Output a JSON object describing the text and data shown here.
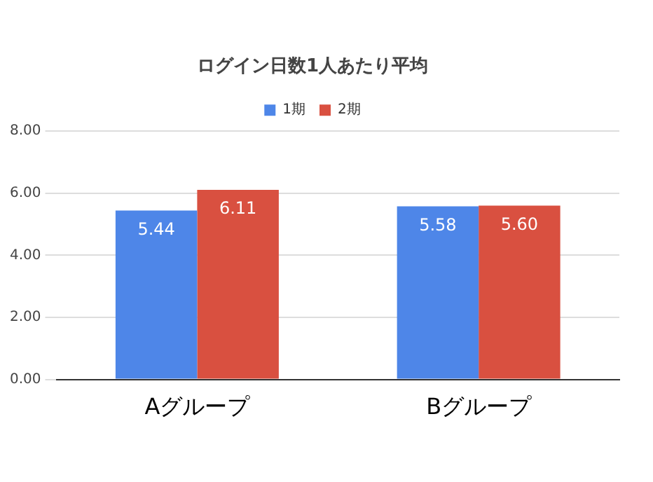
{
  "chart_data": {
    "type": "bar",
    "title": "ログイン日数1人あたり平均",
    "categories": [
      "Aグループ",
      "Bグループ"
    ],
    "series": [
      {
        "name": "1期",
        "color": "#4e86e8",
        "values": [
          5.44,
          5.58
        ],
        "value_labels": [
          "5.44",
          "5.58"
        ]
      },
      {
        "name": "2期",
        "color": "#d95040",
        "values": [
          6.11,
          5.6
        ],
        "value_labels": [
          "6.11",
          "5.60"
        ]
      }
    ],
    "ylim": [
      0,
      8
    ],
    "yticks": [
      {
        "value": 0,
        "label": "0.00"
      },
      {
        "value": 2,
        "label": "2.00"
      },
      {
        "value": 4,
        "label": "4.00"
      },
      {
        "value": 6,
        "label": "6.00"
      },
      {
        "value": 8,
        "label": "8.00"
      }
    ],
    "grid": "y",
    "legend": "top"
  }
}
